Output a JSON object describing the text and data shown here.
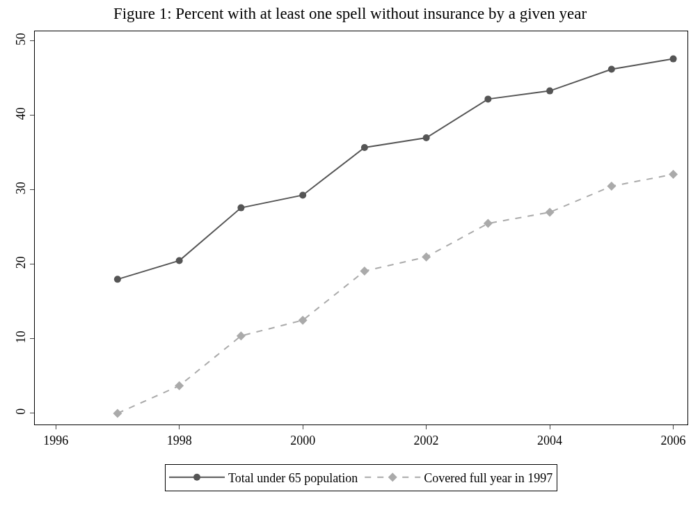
{
  "chart_data": {
    "type": "line",
    "title": "Figure 1: Percent with at least one spell without insurance by a given year",
    "x": [
      1997,
      1998,
      1999,
      2000,
      2001,
      2002,
      2003,
      2004,
      2005,
      2006
    ],
    "series": [
      {
        "name": "Total under 65 population",
        "color": "#555555",
        "marker": "circle",
        "line_style": "solid",
        "values": [
          18.0,
          20.5,
          27.6,
          29.3,
          35.7,
          37.0,
          42.2,
          43.3,
          46.2,
          47.6
        ]
      },
      {
        "name": "Covered full year in 1997",
        "color": "#aaaaaa",
        "marker": "diamond",
        "line_style": "dashed",
        "values": [
          0.0,
          3.7,
          10.4,
          12.5,
          19.1,
          21.0,
          25.5,
          27.0,
          30.5,
          32.1
        ]
      }
    ],
    "xlim": [
      1995.66,
      2006.23
    ],
    "xticks": [
      1996,
      1998,
      2000,
      2002,
      2004,
      2006
    ],
    "ylim": [
      -1.5,
      51.3
    ],
    "yticks": [
      0,
      10,
      20,
      30,
      40,
      50
    ],
    "legend": "bottom"
  }
}
